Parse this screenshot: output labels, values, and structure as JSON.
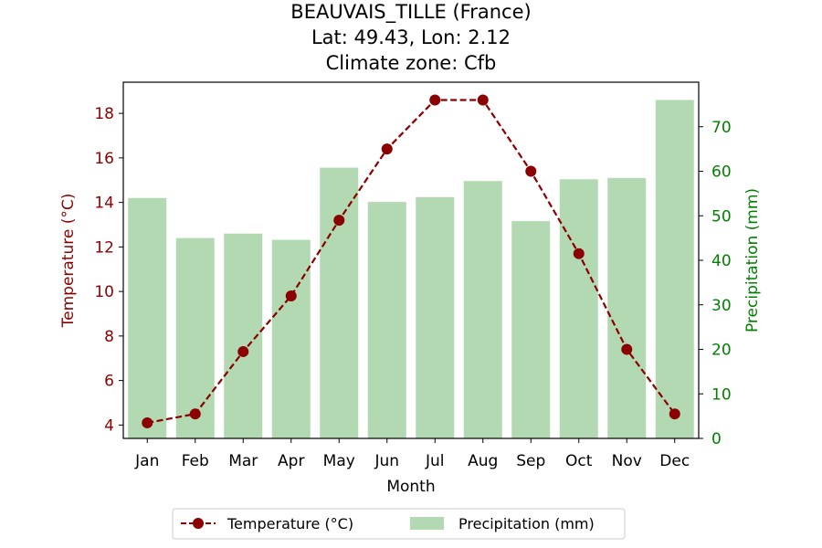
{
  "chart_data": {
    "type": "bar+line",
    "title_lines": [
      "BEAUVAIS_TILLE (France)",
      "Lat: 49.43, Lon: 2.12",
      "Climate zone: Cfb"
    ],
    "xlabel": "Month",
    "categories": [
      "Jan",
      "Feb",
      "Mar",
      "Apr",
      "May",
      "Jun",
      "Jul",
      "Aug",
      "Sep",
      "Oct",
      "Nov",
      "Dec"
    ],
    "temperature": {
      "name": "Temperature (°C)",
      "axis_label": "Temperature (°C)",
      "color": "#8b0000",
      "style": "dashed line with circle markers",
      "values": [
        4.1,
        4.5,
        7.3,
        9.8,
        13.2,
        16.4,
        18.6,
        18.6,
        15.4,
        11.7,
        7.4,
        4.5
      ],
      "ylim": [
        3.4,
        19.4
      ],
      "ticks": [
        4,
        6,
        8,
        10,
        12,
        14,
        16,
        18
      ]
    },
    "precipitation": {
      "name": "Precipitation (mm)",
      "axis_label": "Precipitation (mm)",
      "color": "#b2d9b2",
      "label_color": "#008000",
      "values": [
        54.0,
        45.0,
        46.0,
        44.6,
        60.8,
        53.1,
        54.2,
        57.8,
        48.8,
        58.2,
        58.5,
        76.0
      ],
      "ylim": [
        0,
        80
      ],
      "ticks": [
        0,
        10,
        20,
        30,
        40,
        50,
        60,
        70
      ]
    },
    "legend_position": "below plot, centered",
    "grid": false
  }
}
